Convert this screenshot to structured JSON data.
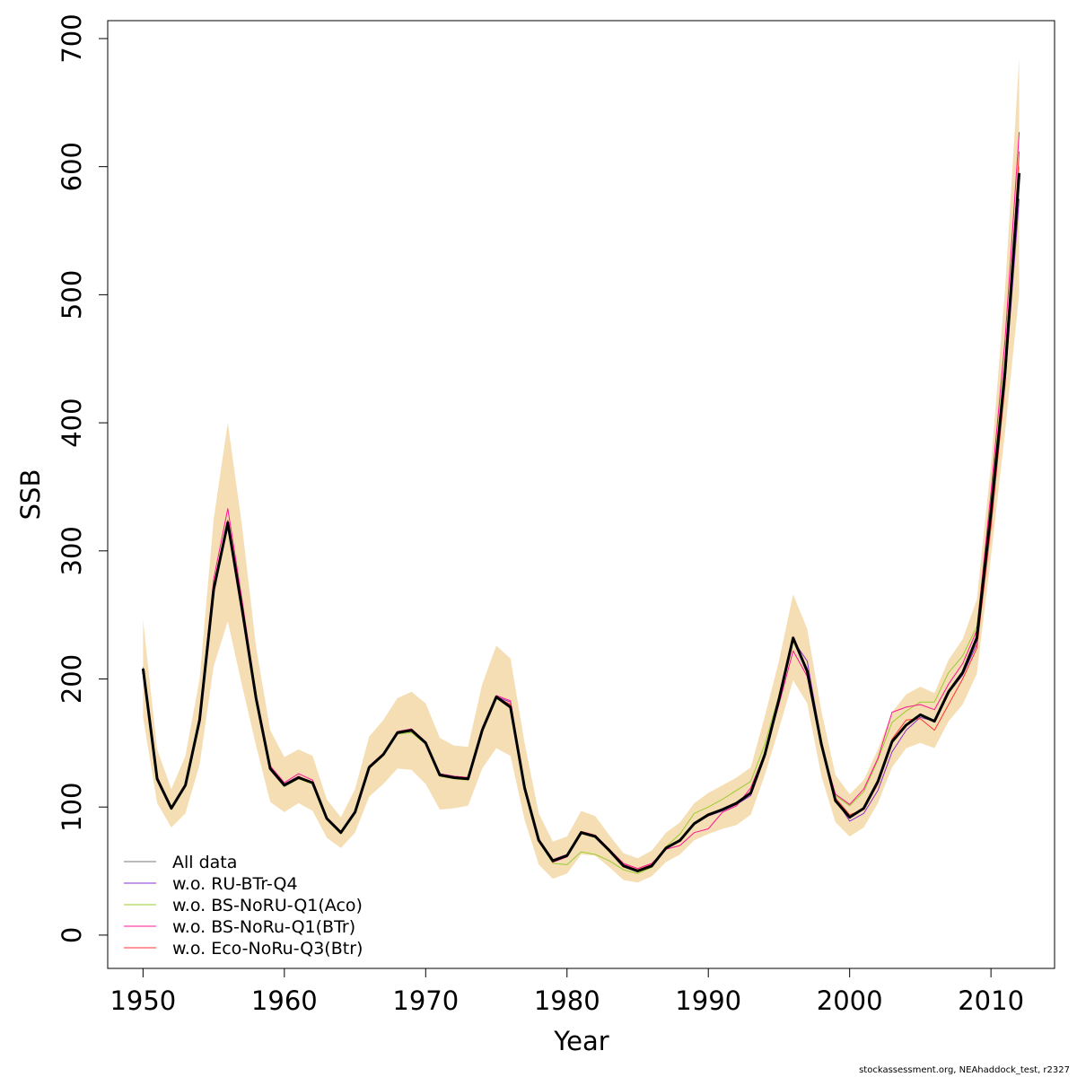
{
  "footer": "stockassessment.org, NEAhaddock_test, r2327",
  "chart_data": {
    "type": "line",
    "title": "",
    "xlabel": "Year",
    "ylabel": "SSB",
    "xlim": [
      1947.5,
      2014.5
    ],
    "ylim": [
      -26,
      714
    ],
    "xticks": [
      1950,
      1960,
      1970,
      1980,
      1990,
      2000,
      2010
    ],
    "yticks": [
      0,
      100,
      200,
      300,
      400,
      500,
      600,
      700
    ],
    "grid": false,
    "legend_placement": "bottom-left",
    "x": [
      1950,
      1951,
      1952,
      1953,
      1954,
      1955,
      1956,
      1957,
      1958,
      1959,
      1960,
      1961,
      1962,
      1963,
      1964,
      1965,
      1966,
      1967,
      1968,
      1969,
      1970,
      1971,
      1972,
      1973,
      1974,
      1975,
      1976,
      1977,
      1978,
      1979,
      1980,
      1981,
      1982,
      1983,
      1984,
      1985,
      1986,
      1987,
      1988,
      1989,
      1990,
      1991,
      1992,
      1993,
      1994,
      1995,
      1996,
      1997,
      1998,
      1999,
      2000,
      2001,
      2002,
      2003,
      2004,
      2005,
      2006,
      2007,
      2008,
      2009,
      2010,
      2011,
      2012
    ],
    "confidence_band": {
      "color": "#f5deb3",
      "lower": [
        170,
        103,
        84,
        95,
        133,
        210,
        245,
        195,
        148,
        104,
        96,
        103,
        97,
        76,
        68,
        80,
        108,
        118,
        130,
        129,
        118,
        98,
        99,
        101,
        130,
        146,
        140,
        90,
        55,
        44,
        48,
        63,
        62,
        53,
        43,
        41,
        46,
        57,
        63,
        74,
        79,
        83,
        86,
        94,
        125,
        161,
        199,
        181,
        124,
        88,
        77,
        84,
        103,
        131,
        146,
        150,
        146,
        167,
        180,
        204,
        295,
        393,
        501
      ],
      "upper": [
        246,
        145,
        114,
        140,
        200,
        325,
        400,
        320,
        225,
        160,
        139,
        145,
        140,
        106,
        92,
        114,
        155,
        168,
        185,
        190,
        181,
        154,
        148,
        147,
        196,
        226,
        216,
        150,
        95,
        73,
        77,
        97,
        93,
        78,
        64,
        60,
        66,
        80,
        88,
        103,
        111,
        117,
        123,
        131,
        171,
        214,
        266,
        239,
        175,
        125,
        110,
        121,
        145,
        174,
        188,
        194,
        189,
        215,
        231,
        262,
        367,
        505,
        685
      ]
    },
    "series": [
      {
        "name": "All data",
        "color": "#000000",
        "width": 3,
        "values": [
          208,
          122,
          99,
          117,
          168,
          270,
          322,
          255,
          185,
          130,
          117,
          123,
          119,
          91,
          80,
          96,
          131,
          141,
          158,
          160,
          150,
          125,
          123,
          122,
          160,
          186,
          178,
          115,
          74,
          58,
          62,
          80,
          77,
          66,
          54,
          50,
          54,
          68,
          74,
          87,
          94,
          98,
          103,
          111,
          141,
          184,
          232,
          206,
          149,
          105,
          92,
          99,
          120,
          151,
          164,
          172,
          167,
          190,
          205,
          232,
          330,
          440,
          595
        ]
      },
      {
        "name": "w.o. RU-BTr-Q4",
        "color": "#8b2fc9",
        "width": 1,
        "values": [
          208,
          123,
          99,
          117,
          168,
          270,
          321,
          256,
          186,
          131,
          118,
          124,
          119,
          91,
          80,
          96,
          132,
          141,
          158,
          159,
          151,
          126,
          124,
          123,
          161,
          186,
          182,
          116,
          75,
          59,
          63,
          81,
          78,
          67,
          55,
          51,
          55,
          68,
          74,
          87,
          93,
          97,
          102,
          109,
          139,
          182,
          230,
          214,
          151,
          106,
          89,
          95,
          113,
          143,
          160,
          170,
          167,
          189,
          203,
          227,
          320,
          432,
          575
        ]
      },
      {
        "name": "w.o. BS-NoRU-Q1(Aco)",
        "color": "#9acd32",
        "width": 1,
        "values": [
          207,
          121,
          98,
          116,
          167,
          268,
          320,
          253,
          184,
          129,
          116,
          122,
          118,
          90,
          79,
          95,
          130,
          140,
          157,
          158,
          149,
          124,
          122,
          121,
          159,
          185,
          177,
          114,
          73,
          56,
          55,
          65,
          63,
          58,
          51,
          48,
          53,
          69,
          79,
          95,
          100,
          106,
          113,
          120,
          149,
          187,
          230,
          205,
          147,
          109,
          101,
          112,
          137,
          166,
          175,
          182,
          182,
          205,
          218,
          241,
          340,
          450,
          600
        ]
      },
      {
        "name": "w.o. BS-NoRu-Q1(BTr)",
        "color": "#ff1493",
        "width": 1,
        "values": [
          209,
          124,
          99,
          118,
          171,
          278,
          333,
          262,
          188,
          132,
          119,
          126,
          121,
          92,
          81,
          97,
          132,
          142,
          159,
          161,
          151,
          126,
          124,
          123,
          162,
          187,
          183,
          116,
          74,
          57,
          61,
          80,
          78,
          67,
          56,
          52,
          56,
          67,
          70,
          80,
          83,
          96,
          101,
          115,
          142,
          180,
          222,
          202,
          148,
          110,
          102,
          114,
          138,
          174,
          178,
          180,
          176,
          196,
          212,
          238,
          345,
          465,
          627
        ]
      },
      {
        "name": "w.o. Eco-NoRu-Q3(Btr)",
        "color": "#ff3333",
        "width": 1,
        "values": [
          209,
          123,
          99,
          117,
          169,
          272,
          324,
          256,
          185,
          130,
          117,
          124,
          119,
          91,
          80,
          96,
          132,
          141,
          158,
          160,
          150,
          125,
          123,
          123,
          160,
          186,
          180,
          115,
          74,
          59,
          62,
          81,
          78,
          67,
          55,
          51,
          55,
          68,
          73,
          87,
          93,
          98,
          102,
          112,
          141,
          184,
          231,
          208,
          149,
          107,
          94,
          98,
          118,
          153,
          168,
          169,
          160,
          180,
          200,
          224,
          318,
          430,
          612
        ]
      }
    ]
  }
}
